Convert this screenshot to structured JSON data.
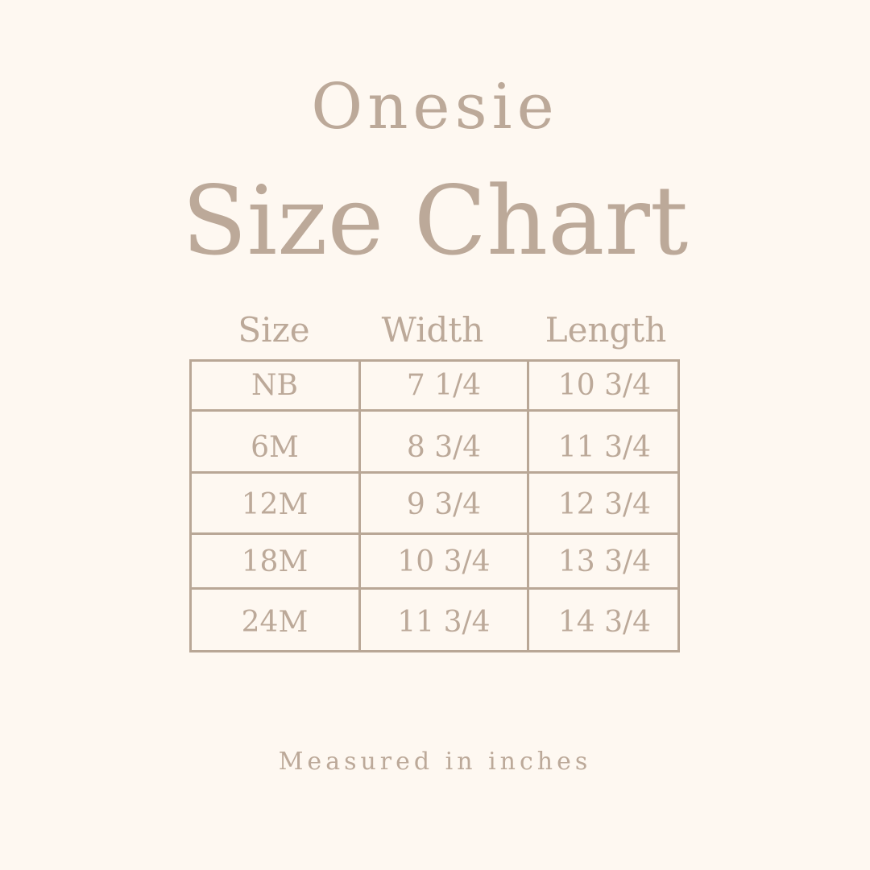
{
  "subtitle": "Onesie",
  "title": "Size Chart",
  "colors": {
    "background": "#fef8f1",
    "text": "#bca999",
    "lines": "#b9a796"
  },
  "table": {
    "headers": [
      "Size",
      "Width",
      "Length"
    ],
    "rows": [
      [
        "NB",
        "7 1/4",
        "10 3/4"
      ],
      [
        "6M",
        "8 3/4",
        "11 3/4"
      ],
      [
        "12M",
        "9 3/4",
        "12 3/4"
      ],
      [
        "18M",
        "10 3/4",
        "13 3/4"
      ],
      [
        "24M",
        "11 3/4",
        "14 3/4"
      ]
    ]
  },
  "footnote": "Measured in inches"
}
